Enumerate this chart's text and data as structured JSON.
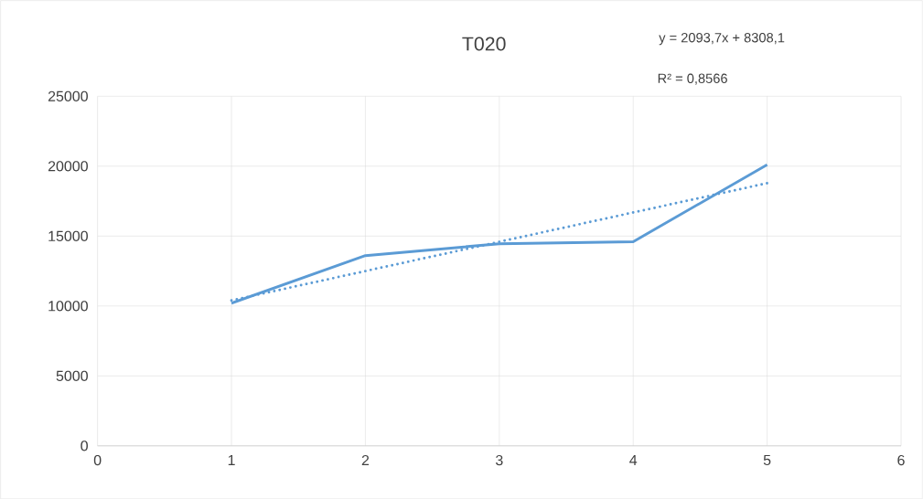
{
  "chart_data": {
    "type": "line",
    "title": "T020",
    "annotations": [
      "y = 2093,7x + 8308,1",
      "R² = 0,8566"
    ],
    "series": [
      {
        "color": "#5b9bd5",
        "x": [
          1,
          2,
          3,
          4,
          5
        ],
        "values": [
          10200,
          13600,
          14450,
          14600,
          20100
        ],
        "line_style": "solid"
      },
      {
        "color": "#5b9bd5",
        "x": [
          1,
          5
        ],
        "values": [
          10400,
          18780
        ],
        "line_style": "dotted"
      }
    ],
    "xlim": [
      0,
      6
    ],
    "xticks": [
      0,
      1,
      2,
      3,
      4,
      5,
      6
    ],
    "ylim": [
      0,
      25000
    ],
    "yticks": [
      0,
      5000,
      10000,
      15000,
      20000,
      25000
    ],
    "grid": true,
    "marker": "none"
  }
}
